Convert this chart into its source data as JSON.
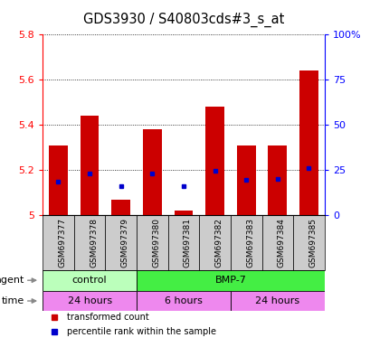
{
  "title": "GDS3930 / S40803cds#3_s_at",
  "samples": [
    "GSM697377",
    "GSM697378",
    "GSM697379",
    "GSM697380",
    "GSM697381",
    "GSM697382",
    "GSM697383",
    "GSM697384",
    "GSM697385"
  ],
  "bar_values": [
    5.31,
    5.44,
    5.07,
    5.38,
    5.02,
    5.48,
    5.31,
    5.31,
    5.64
  ],
  "bar_base": 5.0,
  "percentile_values": [
    5.15,
    5.185,
    5.13,
    5.185,
    5.13,
    5.195,
    5.155,
    5.16,
    5.21
  ],
  "ylim": [
    5.0,
    5.8
  ],
  "yticks": [
    5.0,
    5.2,
    5.4,
    5.6,
    5.8
  ],
  "ytick_labels": [
    "5",
    "5.2",
    "5.4",
    "5.6",
    "5.8"
  ],
  "y2lim": [
    0,
    100
  ],
  "y2ticks": [
    0,
    25,
    50,
    75,
    100
  ],
  "y2ticklabels": [
    "0",
    "25",
    "50",
    "75",
    "100%"
  ],
  "bar_color": "#cc0000",
  "percentile_color": "#0000cc",
  "agent_groups": [
    {
      "label": "control",
      "start": 0,
      "end": 3,
      "color": "#bbffbb"
    },
    {
      "label": "BMP-7",
      "start": 3,
      "end": 9,
      "color": "#44ee44"
    }
  ],
  "time_groups": [
    {
      "label": "24 hours",
      "start": 0,
      "end": 3,
      "color": "#ee88ee"
    },
    {
      "label": "6 hours",
      "start": 3,
      "end": 6,
      "color": "#ee88ee"
    },
    {
      "label": "24 hours",
      "start": 6,
      "end": 9,
      "color": "#ee88ee"
    }
  ],
  "legend_items": [
    {
      "color": "#cc0000",
      "label": "transformed count"
    },
    {
      "color": "#0000cc",
      "label": "percentile rank within the sample"
    }
  ],
  "bar_width": 0.6,
  "title_fontsize": 10.5,
  "tick_fontsize": 8,
  "label_fontsize": 8,
  "xtick_fontsize": 6.5,
  "xtick_bg": "#cccccc"
}
